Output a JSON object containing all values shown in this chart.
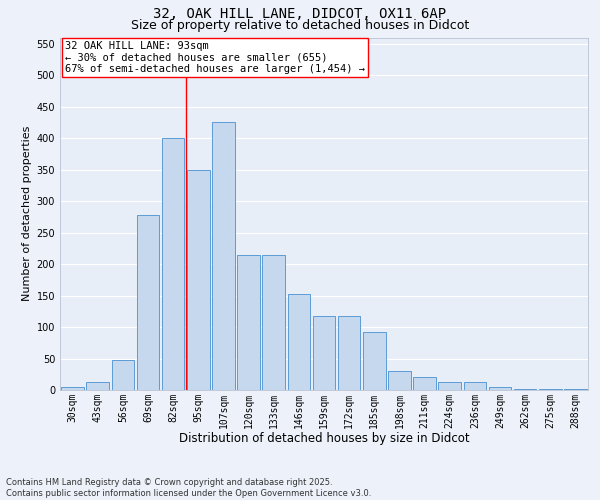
{
  "title_line1": "32, OAK HILL LANE, DIDCOT, OX11 6AP",
  "title_line2": "Size of property relative to detached houses in Didcot",
  "xlabel": "Distribution of detached houses by size in Didcot",
  "ylabel": "Number of detached properties",
  "categories": [
    "30sqm",
    "43sqm",
    "56sqm",
    "69sqm",
    "82sqm",
    "95sqm",
    "107sqm",
    "120sqm",
    "133sqm",
    "146sqm",
    "159sqm",
    "172sqm",
    "185sqm",
    "198sqm",
    "211sqm",
    "224sqm",
    "236sqm",
    "249sqm",
    "262sqm",
    "275sqm",
    "288sqm"
  ],
  "values": [
    5,
    12,
    48,
    278,
    400,
    350,
    425,
    215,
    215,
    152,
    118,
    118,
    92,
    30,
    20,
    13,
    12,
    5,
    2,
    1,
    1
  ],
  "bar_color": "#c5d8ed",
  "bar_edge_color": "#5b9bd5",
  "bg_color": "#e8eef8",
  "grid_color": "#ffffff",
  "fig_bg_color": "#edf2fa",
  "red_line_x": 4.5,
  "annotation_text_line1": "32 OAK HILL LANE: 93sqm",
  "annotation_text_line2": "← 30% of detached houses are smaller (655)",
  "annotation_text_line3": "67% of semi-detached houses are larger (1,454) →",
  "ylim": [
    0,
    560
  ],
  "yticks": [
    0,
    50,
    100,
    150,
    200,
    250,
    300,
    350,
    400,
    450,
    500,
    550
  ],
  "footer_text": "Contains HM Land Registry data © Crown copyright and database right 2025.\nContains public sector information licensed under the Open Government Licence v3.0.",
  "title_fontsize": 10,
  "subtitle_fontsize": 9,
  "annotation_fontsize": 7.5,
  "xlabel_fontsize": 8.5,
  "ylabel_fontsize": 8,
  "tick_fontsize": 7,
  "footer_fontsize": 6
}
